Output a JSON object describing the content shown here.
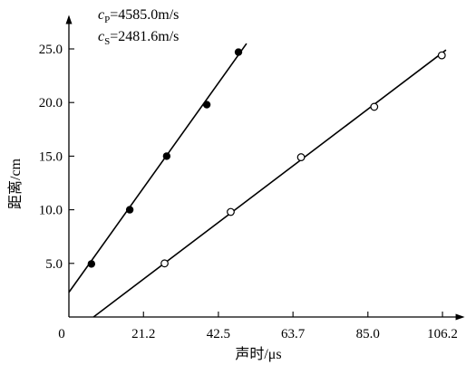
{
  "chart_data": {
    "type": "scatter",
    "xlabel": "声时/μs",
    "ylabel": "距离/cm",
    "x_ticks": [
      "0",
      "21.2",
      "42.5",
      "63.7",
      "85.0",
      "106.2"
    ],
    "x_tick_values": [
      0,
      21.2,
      42.5,
      63.7,
      85.0,
      106.2
    ],
    "y_ticks": [
      "5.0",
      "10.0",
      "15.0",
      "20.0",
      "25.0"
    ],
    "y_tick_values": [
      5.0,
      10.0,
      15.0,
      20.0,
      25.0
    ],
    "xlim": [
      0,
      112
    ],
    "ylim": [
      0,
      28
    ],
    "grid": false,
    "annotations": [
      {
        "symbol": "c",
        "subscript": "P",
        "text": "=4585.0m/s"
      },
      {
        "symbol": "c",
        "subscript": "S",
        "text": "=2481.6m/s"
      }
    ],
    "series": [
      {
        "marker": "filled-circle",
        "x": [
          6.4,
          17.3,
          27.8,
          39.2,
          48.2
        ],
        "y": [
          4.95,
          10.0,
          15.0,
          19.8,
          24.7
        ],
        "fit_line": {
          "x": [
            0.0,
            50.5
          ],
          "y": [
            2.3,
            25.5
          ]
        }
      },
      {
        "marker": "open-circle",
        "x": [
          27.2,
          46.0,
          66.0,
          86.8,
          106.0
        ],
        "y": [
          5.0,
          9.8,
          14.9,
          19.6,
          24.4
        ],
        "fit_line": {
          "x": [
            7.0,
            107.2
          ],
          "y": [
            0.0,
            24.9
          ]
        }
      }
    ]
  }
}
